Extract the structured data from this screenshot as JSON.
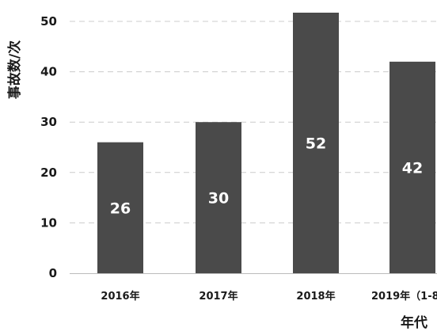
{
  "chart_data": {
    "type": "bar",
    "categories": [
      "2016年",
      "2017年",
      "2018年",
      "2019年（1-8"
    ],
    "values": [
      26,
      30,
      52,
      42
    ],
    "data_labels": [
      "26",
      "30",
      "52",
      "42"
    ],
    "title": "",
    "xlabel": "年代",
    "ylabel": "事故数/次",
    "ylim": [
      0,
      50
    ],
    "yticks": [
      "0",
      "10",
      "20",
      "30",
      "40",
      "50"
    ],
    "grid": true,
    "bar_color": "#4a4a4a",
    "grid_color": "#cccccc"
  }
}
